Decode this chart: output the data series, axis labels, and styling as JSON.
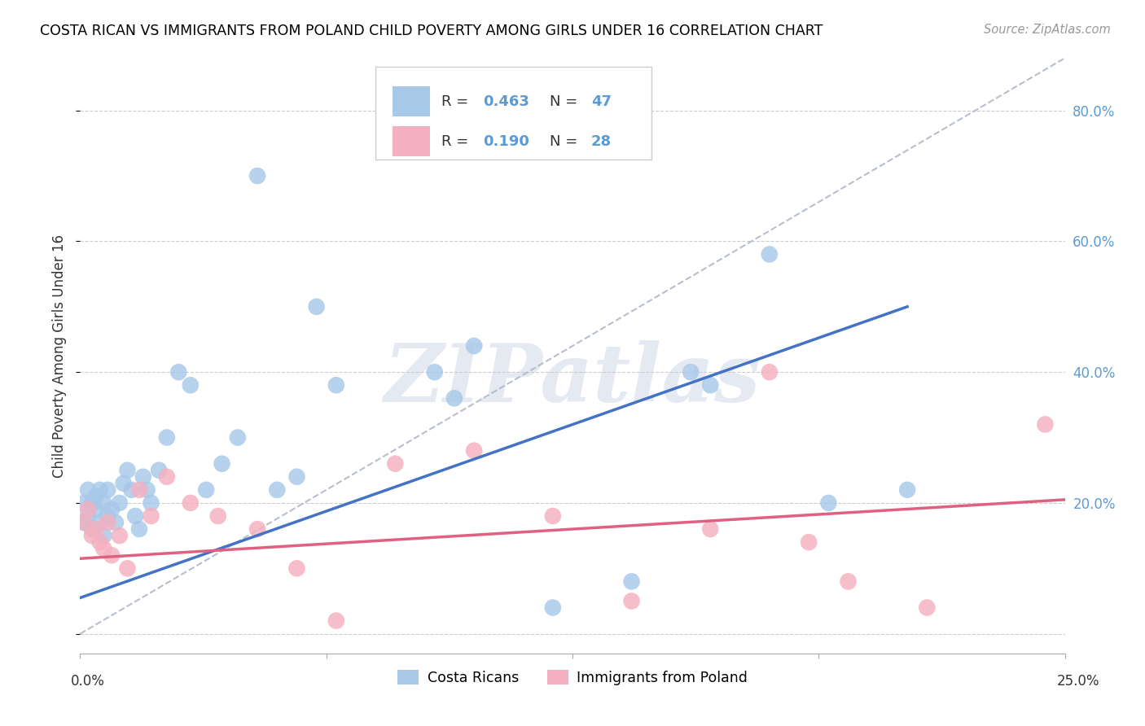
{
  "title": "COSTA RICAN VS IMMIGRANTS FROM POLAND CHILD POVERTY AMONG GIRLS UNDER 16 CORRELATION CHART",
  "source": "Source: ZipAtlas.com",
  "ylabel": "Child Poverty Among Girls Under 16",
  "xlim": [
    0.0,
    0.25
  ],
  "ylim": [
    -0.03,
    0.88
  ],
  "r_costa": 0.463,
  "n_costa": 47,
  "r_poland": 0.19,
  "n_poland": 28,
  "legend_label1": "Costa Ricans",
  "legend_label2": "Immigrants from Poland",
  "color_costa": "#a8c8e8",
  "color_poland": "#f4b0c0",
  "line_color_costa": "#4472c4",
  "line_color_poland": "#e06080",
  "dash_line_color": "#b0b8c8",
  "watermark": "ZIPatlas",
  "costa_line_x0": 0.0,
  "costa_line_y0": 0.055,
  "costa_line_x1": 0.21,
  "costa_line_y1": 0.5,
  "poland_line_x0": 0.0,
  "poland_line_y0": 0.115,
  "poland_line_x1": 0.25,
  "poland_line_y1": 0.205,
  "dash_line_x0": 0.0,
  "dash_line_y0": 0.0,
  "dash_line_x1": 0.25,
  "dash_line_y1": 0.88,
  "costa_x": [
    0.001,
    0.001,
    0.002,
    0.002,
    0.003,
    0.003,
    0.004,
    0.004,
    0.005,
    0.005,
    0.006,
    0.006,
    0.007,
    0.007,
    0.008,
    0.009,
    0.01,
    0.011,
    0.012,
    0.013,
    0.014,
    0.015,
    0.016,
    0.017,
    0.018,
    0.02,
    0.022,
    0.025,
    0.028,
    0.032,
    0.036,
    0.04,
    0.045,
    0.05,
    0.055,
    0.06,
    0.065,
    0.09,
    0.095,
    0.1,
    0.12,
    0.14,
    0.155,
    0.16,
    0.175,
    0.19,
    0.21
  ],
  "costa_y": [
    0.17,
    0.2,
    0.18,
    0.22,
    0.16,
    0.2,
    0.19,
    0.21,
    0.17,
    0.22,
    0.15,
    0.2,
    0.18,
    0.22,
    0.19,
    0.17,
    0.2,
    0.23,
    0.25,
    0.22,
    0.18,
    0.16,
    0.24,
    0.22,
    0.2,
    0.25,
    0.3,
    0.4,
    0.38,
    0.22,
    0.26,
    0.3,
    0.7,
    0.22,
    0.24,
    0.5,
    0.38,
    0.4,
    0.36,
    0.44,
    0.04,
    0.08,
    0.4,
    0.38,
    0.58,
    0.2,
    0.22
  ],
  "poland_x": [
    0.001,
    0.002,
    0.003,
    0.004,
    0.005,
    0.006,
    0.007,
    0.008,
    0.01,
    0.012,
    0.015,
    0.018,
    0.022,
    0.028,
    0.035,
    0.045,
    0.055,
    0.065,
    0.08,
    0.1,
    0.12,
    0.14,
    0.16,
    0.175,
    0.185,
    0.195,
    0.215,
    0.245
  ],
  "poland_y": [
    0.17,
    0.19,
    0.15,
    0.16,
    0.14,
    0.13,
    0.17,
    0.12,
    0.15,
    0.1,
    0.22,
    0.18,
    0.24,
    0.2,
    0.18,
    0.16,
    0.1,
    0.02,
    0.26,
    0.28,
    0.18,
    0.05,
    0.16,
    0.4,
    0.14,
    0.08,
    0.04,
    0.32
  ]
}
